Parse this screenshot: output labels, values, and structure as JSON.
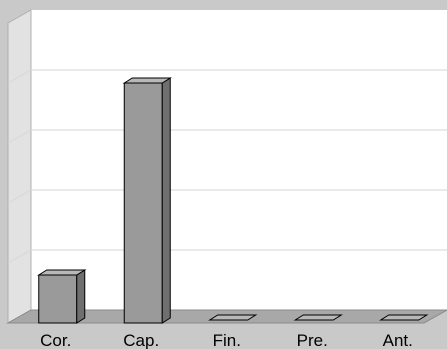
{
  "chart_data": {
    "type": "bar",
    "categories": [
      "Cor.",
      "Cap.",
      "Fin.",
      "Pre.",
      "Ant."
    ],
    "values": [
      8,
      40,
      0,
      0,
      0
    ],
    "ylim": [
      0,
      50
    ],
    "grid": true,
    "three_d": true,
    "colors": {
      "bar_front": "#9a9a9a",
      "bar_side": "#6f6f6f",
      "bar_top": "#b8b8b8",
      "plot_back": "#ffffff",
      "gridline": "#d6d6d6",
      "floor": "#a8a8a8",
      "left_wall": "#e2e2e2",
      "background": "#c9c9c9"
    }
  }
}
